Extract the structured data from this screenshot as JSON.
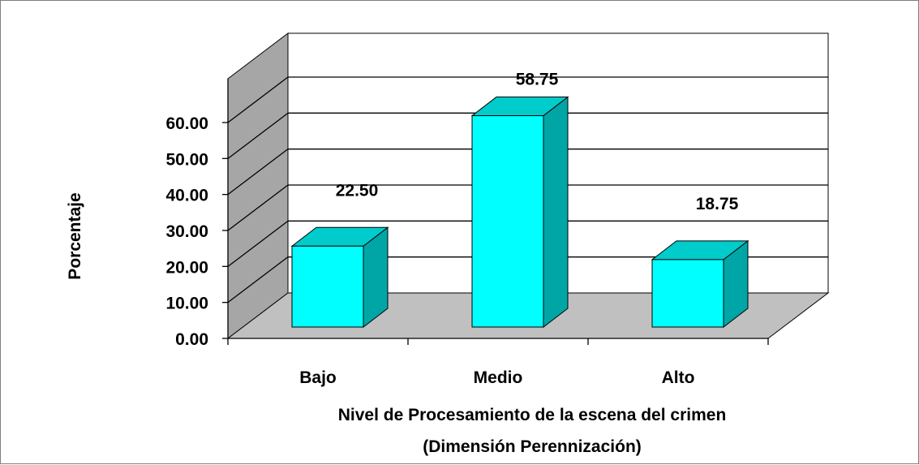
{
  "chart_data": {
    "type": "bar",
    "categories": [
      "Bajo",
      "Medio",
      "Alto"
    ],
    "values": [
      22.5,
      58.75,
      18.75
    ],
    "data_labels": [
      "22.50",
      "58.75",
      "18.75"
    ],
    "ylabel": "Porcentaje",
    "xlabel_line1": "Nivel de Procesamiento de la escena del crimen",
    "xlabel_line2": "(Dimensión Perennización)",
    "ylim": [
      0,
      60
    ],
    "yticks": [
      0,
      10,
      20,
      30,
      40,
      50,
      60
    ],
    "ytick_labels": [
      "0.00",
      "10.00",
      "20.00",
      "30.00",
      "40.00",
      "50.00",
      "60.00"
    ],
    "grid": true,
    "style": "3d-column",
    "colors": {
      "bar_front": "#00ffff",
      "bar_side": "#00a6a6",
      "bar_top": "#00cccc",
      "back_wall": "#ffffff",
      "side_wall": "#a6a6a6",
      "floor": "#c0c0c0",
      "gridline": "#000000"
    }
  }
}
